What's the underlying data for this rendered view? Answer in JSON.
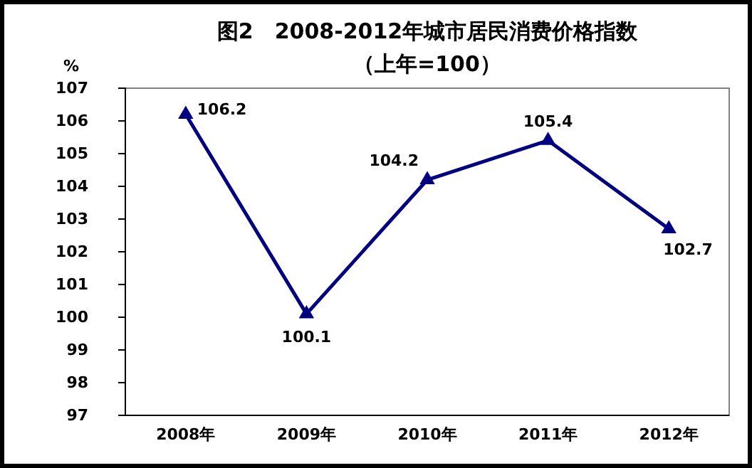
{
  "chart_data": {
    "type": "line",
    "title": "图2　2008-2012年城市居民消费价格指数",
    "subtitle": "（上年=100）",
    "ylabel": "%",
    "categories": [
      "2008年",
      "2009年",
      "2010年",
      "2011年",
      "2012年"
    ],
    "series": [
      {
        "color": "#000080",
        "values": [
          106.2,
          100.1,
          104.2,
          105.4,
          102.7
        ]
      }
    ],
    "ylim": [
      97,
      107
    ],
    "yticks": [
      97,
      98,
      99,
      100,
      101,
      102,
      103,
      104,
      105,
      106,
      107
    ],
    "marker": "triangle",
    "line_style": "solid",
    "data_labels": true,
    "grid": false
  }
}
